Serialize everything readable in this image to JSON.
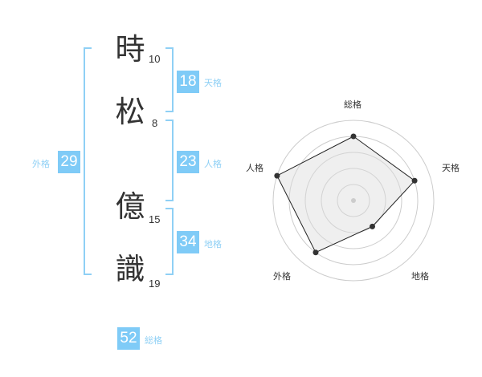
{
  "name_chars": [
    {
      "char": "時",
      "strokes": "10"
    },
    {
      "char": "松",
      "strokes": "8"
    },
    {
      "char": "億",
      "strokes": "15"
    },
    {
      "char": "識",
      "strokes": "19"
    }
  ],
  "kaku": {
    "tenkaku": {
      "value": "18",
      "label": "天格"
    },
    "jinkaku": {
      "value": "23",
      "label": "人格"
    },
    "chikaku": {
      "value": "34",
      "label": "地格"
    },
    "gaikaku": {
      "value": "29",
      "label": "外格"
    },
    "soukaku": {
      "value": "52",
      "label": "総格"
    }
  },
  "colors": {
    "accent": "#7fcbf7",
    "label": "#8fd0f5"
  },
  "chart_data": {
    "type": "radar",
    "axes": [
      "総格",
      "天格",
      "地格",
      "外格",
      "人格"
    ],
    "values": [
      4,
      4,
      2,
      4,
      5
    ],
    "rmax": 5,
    "rings": 5
  }
}
